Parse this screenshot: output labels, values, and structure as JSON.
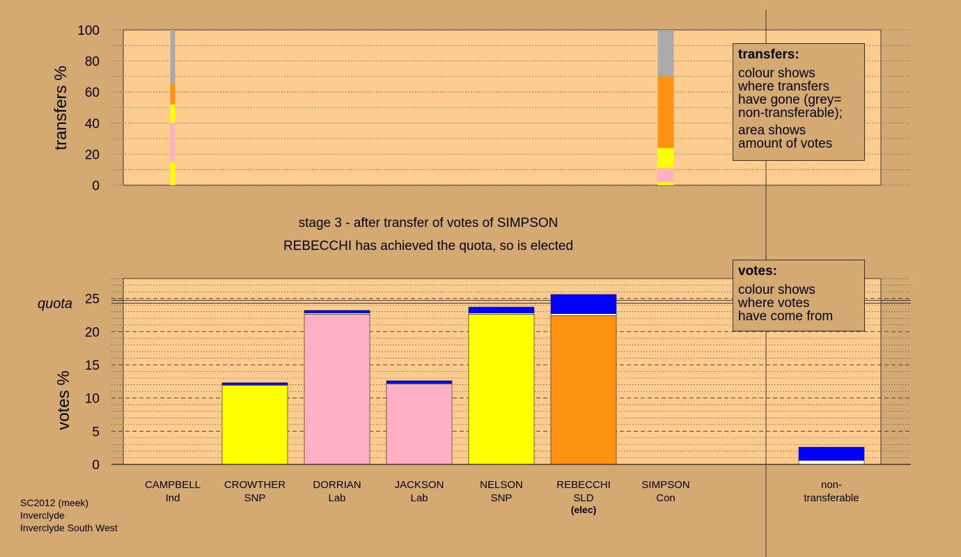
{
  "colors": {
    "background": "#d4a972",
    "plot_background": "#ffcc8f",
    "grey": "#aaaaaa",
    "orange": "#ff9310",
    "yellow": "#ffff00",
    "pink": "#ffb0c4",
    "blue": "#0000ff",
    "white": "#ffffff"
  },
  "chart_data": [
    {
      "type": "bar",
      "stacked": true,
      "ylabel": "transfers %",
      "ylim": [
        0,
        100
      ],
      "yticks": [
        0,
        20,
        40,
        60,
        80,
        100
      ],
      "bars": [
        {
          "slot": 0,
          "segments": [
            {
              "color": "yellow",
              "from": 0,
              "to": 15
            },
            {
              "color": "pink",
              "from": 15,
              "to": 40
            },
            {
              "color": "yellow",
              "from": 40,
              "to": 52
            },
            {
              "color": "orange",
              "from": 52,
              "to": 65
            },
            {
              "color": "grey",
              "from": 65,
              "to": 100
            }
          ]
        },
        {
          "slot": 6,
          "segments": [
            {
              "color": "yellow",
              "from": 0,
              "to": 2
            },
            {
              "color": "pink",
              "from": 2,
              "to": 11
            },
            {
              "color": "yellow",
              "from": 11,
              "to": 24
            },
            {
              "color": "orange",
              "from": 24,
              "to": 70
            },
            {
              "color": "grey",
              "from": 70,
              "to": 100
            }
          ]
        }
      ]
    },
    {
      "type": "bar",
      "stacked": true,
      "ylabel": "votes %",
      "ylim": [
        0,
        28
      ],
      "yticks": [
        0,
        5,
        10,
        15,
        20,
        25
      ],
      "quota": 24.5,
      "quota_label": "quota",
      "categories": [
        {
          "name": "CAMPBELL",
          "party": "Ind",
          "elected_label": "",
          "segments": []
        },
        {
          "name": "CROWTHER",
          "party": "SNP",
          "elected_label": "",
          "segments": [
            {
              "color": "yellow",
              "value": 11.9
            },
            {
              "color": "white",
              "value": 0.1
            },
            {
              "color": "blue",
              "value": 0.3
            }
          ]
        },
        {
          "name": "DORRIAN",
          "party": "Lab",
          "elected_label": "",
          "segments": [
            {
              "color": "pink",
              "value": 22.6
            },
            {
              "color": "white",
              "value": 0.2
            },
            {
              "color": "blue",
              "value": 0.4
            }
          ]
        },
        {
          "name": "JACKSON",
          "party": "Lab",
          "elected_label": "",
          "segments": [
            {
              "color": "pink",
              "value": 12.1
            },
            {
              "color": "white",
              "value": 0.1
            },
            {
              "color": "blue",
              "value": 0.4
            }
          ]
        },
        {
          "name": "NELSON",
          "party": "SNP",
          "elected_label": "",
          "segments": [
            {
              "color": "yellow",
              "value": 22.6
            },
            {
              "color": "white",
              "value": 0.2
            },
            {
              "color": "blue",
              "value": 0.9
            }
          ]
        },
        {
          "name": "REBECCHI",
          "party": "SLD",
          "elected_label": "(elec)",
          "segments": [
            {
              "color": "orange",
              "value": 22.4
            },
            {
              "color": "white",
              "value": 0.3
            },
            {
              "color": "blue",
              "value": 2.9
            }
          ]
        },
        {
          "name": "SIMPSON",
          "party": "Con",
          "elected_label": "",
          "segments": []
        }
      ],
      "nontransferable": {
        "label_line1": "non-",
        "label_line2": "transferable",
        "segments": [
          {
            "color": "white",
            "value": 0.6
          },
          {
            "color": "blue",
            "value": 2.0
          }
        ]
      }
    }
  ],
  "stage_title": "stage 3 - after transfer of votes of SIMPSON",
  "stage_subtitle": "REBECCHI has achieved the quota, so is elected",
  "transfers_legend": {
    "title": "transfers:",
    "line1": "colour shows",
    "line2": "where transfers",
    "line3": "have gone (grey=",
    "line4": "non-transferable);",
    "line5": "area shows",
    "line6": "amount of votes"
  },
  "votes_legend": {
    "title": "votes:",
    "line1": "colour shows",
    "line2": "where votes",
    "line3": "have come from"
  },
  "footer": {
    "line1": "SC2012 (meek)",
    "line2": "Inverclyde",
    "line3": "Inverclyde South West"
  }
}
